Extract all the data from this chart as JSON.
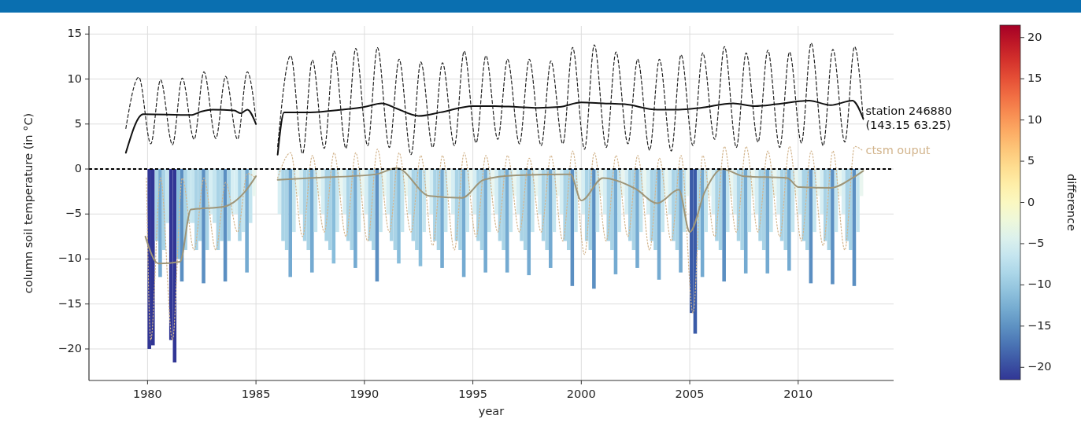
{
  "chart_data": {
    "type": "line",
    "xlabel": "year",
    "ylabel": "column soil temperature (in °C)",
    "clabel": "difference",
    "xlim": [
      1977.3,
      2014.4
    ],
    "ylim": [
      -23.5,
      15.9
    ],
    "xticks": [
      1980,
      1985,
      1990,
      1995,
      2000,
      2005,
      2010
    ],
    "yticks": [
      {
        "value": -20,
        "label": "−20"
      },
      {
        "value": -15,
        "label": "−15"
      },
      {
        "value": -10,
        "label": "−10"
      },
      {
        "value": -5,
        "label": "−5"
      },
      0,
      5,
      10,
      15
    ],
    "clim": [
      -21.5,
      21.5
    ],
    "cticks": [
      {
        "value": -20,
        "label": "−20"
      },
      {
        "value": -15,
        "label": "−15"
      },
      {
        "value": -10,
        "label": "−10"
      },
      {
        "value": -5,
        "label": "−5"
      },
      0,
      5,
      10,
      15,
      20
    ],
    "grid": true,
    "ref_lines": [
      {
        "axis": "y",
        "value": 0,
        "color": "#000000",
        "line_style": "dashed"
      }
    ],
    "series": [
      {
        "type": "bar",
        "x": [
          1980.083,
          1980.25,
          1980.417,
          1980.583,
          1980.75,
          1980.917,
          1981.083,
          1981.25,
          1981.417,
          1981.583,
          1981.75,
          1981.917,
          1982.083,
          1982.25,
          1982.417,
          1982.583,
          1982.75,
          1982.917,
          1983.083,
          1983.25,
          1983.417,
          1983.583,
          1983.75,
          1983.917,
          1984.083,
          1984.25,
          1984.417,
          1984.583,
          1984.75,
          1984.917,
          1986.083,
          1986.25,
          1986.417,
          1986.583,
          1986.75,
          1986.917,
          1987.083,
          1987.25,
          1987.417,
          1987.583,
          1987.75,
          1987.917,
          1988.083,
          1988.25,
          1988.417,
          1988.583,
          1988.75,
          1988.917,
          1989.083,
          1989.25,
          1989.417,
          1989.583,
          1989.75,
          1989.917,
          1990.083,
          1990.25,
          1990.417,
          1990.583,
          1990.75,
          1990.917,
          1991.083,
          1991.25,
          1991.417,
          1991.583,
          1991.75,
          1991.917,
          1992.083,
          1992.25,
          1992.417,
          1992.583,
          1992.75,
          1992.917,
          1993.083,
          1993.25,
          1993.417,
          1993.583,
          1993.75,
          1993.917,
          1994.083,
          1994.25,
          1994.417,
          1994.583,
          1994.75,
          1994.917,
          1995.083,
          1995.25,
          1995.417,
          1995.583,
          1995.75,
          1995.917,
          1996.083,
          1996.25,
          1996.417,
          1996.583,
          1996.75,
          1996.917,
          1997.083,
          1997.25,
          1997.417,
          1997.583,
          1997.75,
          1997.917,
          1998.083,
          1998.25,
          1998.417,
          1998.583,
          1998.75,
          1998.917,
          1999.083,
          1999.25,
          1999.417,
          1999.583,
          1999.75,
          1999.917,
          2000.083,
          2000.25,
          2000.417,
          2000.583,
          2000.75,
          2000.917,
          2001.083,
          2001.25,
          2001.417,
          2001.583,
          2001.75,
          2001.917,
          2002.083,
          2002.25,
          2002.417,
          2002.583,
          2002.75,
          2002.917,
          2003.083,
          2003.25,
          2003.417,
          2003.583,
          2003.75,
          2003.917,
          2004.083,
          2004.25,
          2004.417,
          2004.583,
          2004.75,
          2004.917,
          2005.083,
          2005.25,
          2005.417,
          2005.583,
          2005.75,
          2005.917,
          2006.083,
          2006.25,
          2006.417,
          2006.583,
          2006.75,
          2006.917,
          2007.083,
          2007.25,
          2007.417,
          2007.583,
          2007.75,
          2007.917,
          2008.083,
          2008.25,
          2008.417,
          2008.583,
          2008.75,
          2008.917,
          2009.083,
          2009.25,
          2009.417,
          2009.583,
          2009.75,
          2009.917,
          2010.083,
          2010.25,
          2010.417,
          2010.583,
          2010.75,
          2010.917,
          2011.083,
          2011.25,
          2011.417,
          2011.583,
          2011.75,
          2011.917,
          2012.083,
          2012.25,
          2012.417,
          2012.583,
          2012.75,
          2012.917
        ],
        "colors": [
          "#313695",
          "#313695",
          "#a9d3e6",
          "#74aad1",
          "#a9d3e6",
          "#c5e5ef",
          "#313695",
          "#313695",
          "#88bddb",
          "#5b8fc2",
          "#a9d3e6",
          "#c5e5ef",
          "#c5e5ef",
          "#a9d3e6",
          "#a9d3e6",
          "#5b8fc2",
          "#a9d3e6",
          "#d6eef3",
          "#c5e5ef",
          "#a9d3e6",
          "#a9d3e6",
          "#5b8fc2",
          "#a9d3e6",
          "#d6eef3",
          "#d6eef3",
          "#a9d3e6",
          "#c5e5ef",
          "#74aad1",
          "#c5e5ef",
          "#eaf6f0",
          "#d6eef3",
          "#a9d3e6",
          "#a9d3e6",
          "#74aad1",
          "#c5e5ef",
          "#eaf6f0",
          "#d6eef3",
          "#a9d3e6",
          "#a9d3e6",
          "#74aad1",
          "#c5e5ef",
          "#eaf6f0",
          "#d6eef3",
          "#a9d3e6",
          "#a9d3e6",
          "#88bddb",
          "#c5e5ef",
          "#eaf6f0",
          "#d6eef3",
          "#a9d3e6",
          "#a9d3e6",
          "#74aad1",
          "#c5e5ef",
          "#eaf6f0",
          "#d6eef3",
          "#a9d3e6",
          "#a9d3e6",
          "#5b8fc2",
          "#c5e5ef",
          "#eaf6f0",
          "#d6eef3",
          "#a9d3e6",
          "#a9d3e6",
          "#88bddb",
          "#c5e5ef",
          "#eaf6f0",
          "#d6eef3",
          "#a9d3e6",
          "#a9d3e6",
          "#88bddb",
          "#c5e5ef",
          "#eaf6f0",
          "#d6eef3",
          "#a9d3e6",
          "#a9d3e6",
          "#74aad1",
          "#c5e5ef",
          "#eaf6f0",
          "#d6eef3",
          "#a9d3e6",
          "#a9d3e6",
          "#74aad1",
          "#c5e5ef",
          "#eaf6f0",
          "#d6eef3",
          "#a9d3e6",
          "#a9d3e6",
          "#74aad1",
          "#c5e5ef",
          "#eaf6f0",
          "#d6eef3",
          "#a9d3e6",
          "#a9d3e6",
          "#74aad1",
          "#c5e5ef",
          "#eaf6f0",
          "#d6eef3",
          "#a9d3e6",
          "#a9d3e6",
          "#74aad1",
          "#c5e5ef",
          "#eaf6f0",
          "#d6eef3",
          "#a9d3e6",
          "#a9d3e6",
          "#74aad1",
          "#c5e5ef",
          "#eaf6f0",
          "#d6eef3",
          "#a9d3e6",
          "#a9d3e6",
          "#5b8fc2",
          "#c5e5ef",
          "#eaf6f0",
          "#d6eef3",
          "#a9d3e6",
          "#a9d3e6",
          "#5b8fc2",
          "#c5e5ef",
          "#eaf6f0",
          "#d6eef3",
          "#a9d3e6",
          "#a9d3e6",
          "#74aad1",
          "#c5e5ef",
          "#eaf6f0",
          "#d6eef3",
          "#a9d3e6",
          "#a9d3e6",
          "#74aad1",
          "#c5e5ef",
          "#eaf6f0",
          "#d6eef3",
          "#a9d3e6",
          "#a9d3e6",
          "#74aad1",
          "#c5e5ef",
          "#eaf6f0",
          "#d6eef3",
          "#a9d3e6",
          "#a9d3e6",
          "#74aad1",
          "#c5e5ef",
          "#eaf6f0",
          "#3a5ba8",
          "#3a5ba8",
          "#a9d3e6",
          "#74aad1",
          "#c5e5ef",
          "#eaf6f0",
          "#d6eef3",
          "#a9d3e6",
          "#a9d3e6",
          "#5b8fc2",
          "#c5e5ef",
          "#eaf6f0",
          "#d6eef3",
          "#a9d3e6",
          "#a9d3e6",
          "#74aad1",
          "#c5e5ef",
          "#eaf6f0",
          "#d6eef3",
          "#a9d3e6",
          "#a9d3e6",
          "#74aad1",
          "#c5e5ef",
          "#eaf6f0",
          "#d6eef3",
          "#a9d3e6",
          "#a9d3e6",
          "#74aad1",
          "#c5e5ef",
          "#eaf6f0",
          "#d6eef3",
          "#a9d3e6",
          "#a9d3e6",
          "#5b8fc2",
          "#c5e5ef",
          "#eaf6f0",
          "#d6eef3",
          "#a9d3e6",
          "#a9d3e6",
          "#5b8fc2",
          "#c5e5ef",
          "#eaf6f0",
          "#d6eef3",
          "#a9d3e6",
          "#a9d3e6",
          "#5b8fc2",
          "#c5e5ef",
          "#eaf6f0"
        ],
        "values": [
          -20,
          -19.6,
          -8,
          -12,
          -9,
          -6,
          -19,
          -21.5,
          -10,
          -12.5,
          -9,
          -6,
          -6,
          -9,
          -8,
          -12.7,
          -9,
          -5,
          -6,
          -9,
          -8,
          -12.5,
          -8,
          -5,
          -5,
          -8,
          -7,
          -11.5,
          -6,
          -3,
          -5,
          -8,
          -9,
          -12,
          -7,
          -3,
          -5,
          -8,
          -9,
          -11.5,
          -7,
          -3,
          -5,
          -8,
          -9,
          -10.5,
          -7,
          -3,
          -5,
          -8,
          -9,
          -11,
          -7,
          -3,
          -5,
          -8,
          -9,
          -12.5,
          -7,
          -3,
          -5,
          -8,
          -9,
          -10.5,
          -7,
          -3,
          -5,
          -8,
          -9,
          -10.8,
          -7,
          -3,
          -5,
          -8,
          -9,
          -11,
          -7,
          -3,
          -5,
          -8,
          -9,
          -12,
          -7,
          -3,
          -5,
          -8,
          -9,
          -11.5,
          -7,
          -3,
          -5,
          -8,
          -9,
          -11.5,
          -7,
          -3,
          -5,
          -8,
          -9,
          -11.8,
          -7,
          -3,
          -5,
          -8,
          -9,
          -11,
          -7,
          -3,
          -5,
          -8,
          -9,
          -13,
          -7,
          -3,
          -5,
          -8,
          -9,
          -13.3,
          -7,
          -3,
          -5,
          -8,
          -9,
          -11.7,
          -7,
          -3,
          -5,
          -8,
          -9,
          -11,
          -7,
          -3,
          -5,
          -8,
          -9,
          -12.3,
          -7,
          -3,
          -5,
          -8,
          -9,
          -11.5,
          -7,
          -3,
          -16,
          -18.3,
          -9,
          -12,
          -7,
          -3,
          -5,
          -8,
          -9,
          -12.5,
          -7,
          -3,
          -5,
          -8,
          -9,
          -11.6,
          -7,
          -3,
          -5,
          -8,
          -9,
          -11.6,
          -7,
          -3,
          -5,
          -8,
          -9,
          -11.3,
          -7,
          -3,
          -5,
          -8,
          -9,
          -12.7,
          -7,
          -3,
          -5,
          -8,
          -9,
          -12.8,
          -7,
          -3,
          -5,
          -8,
          -9,
          -13,
          -7,
          -3
        ]
      },
      {
        "color": "#222222",
        "line_style": "dashed",
        "x": [
          1979.0,
          1979.6,
          1980.15,
          1980.6,
          1981.15,
          1981.6,
          1982.15,
          1982.6,
          1983.15,
          1983.6,
          1984.15,
          1984.6,
          1985.0,
          1985.5,
          1986.0,
          1986.6,
          1987.15,
          1987.6,
          1988.15,
          1988.6,
          1989.15,
          1989.6,
          1990.15,
          1990.6,
          1991.15,
          1991.6,
          1992.15,
          1992.6,
          1993.15,
          1993.6,
          1994.15,
          1994.6,
          1995.15,
          1995.6,
          1996.15,
          1996.6,
          1997.15,
          1997.6,
          1998.15,
          1998.6,
          1999.15,
          1999.6,
          2000.15,
          2000.6,
          2001.15,
          2001.6,
          2002.15,
          2002.6,
          2003.15,
          2003.6,
          2004.15,
          2004.6,
          2005.15,
          2005.6,
          2006.15,
          2006.6,
          2007.15,
          2007.6,
          2008.15,
          2008.6,
          2009.15,
          2009.6,
          2010.15,
          2010.6,
          2011.15,
          2011.6,
          2012.15,
          2012.6,
          2013.0
        ],
        "values": [
          4.5,
          10.2,
          2.8,
          9.9,
          2.7,
          10.1,
          3.3,
          10.8,
          3.4,
          10.3,
          3.3,
          10.8,
          5.5,
          null,
          2.5,
          12.6,
          1.7,
          12.1,
          2.3,
          13.1,
          2.3,
          13.4,
          2.6,
          13.5,
          2.4,
          12.2,
          1.6,
          11.9,
          2.4,
          11.8,
          2.6,
          13.1,
          2.9,
          12.6,
          3.3,
          12.2,
          2.8,
          12.2,
          2.6,
          12.0,
          2.8,
          13.5,
          2.2,
          13.8,
          2.4,
          13.0,
          2.8,
          12.2,
          2.1,
          12.2,
          2.0,
          12.7,
          2.6,
          12.9,
          3.3,
          13.6,
          2.4,
          12.9,
          3.0,
          13.2,
          2.4,
          13.0,
          2.9,
          14.0,
          2.6,
          13.3,
          3.0,
          13.6,
          5.5
        ]
      },
      {
        "name": "station 246880 (143.15 63.25)",
        "color": "#111111",
        "line_style": "solid",
        "x": [
          1979.0,
          1979.8,
          1982.0,
          1982.5,
          1983.0,
          1984.0,
          1984.3,
          1984.6,
          1985.0,
          1985.5,
          1986.0,
          1986.3,
          1987.5,
          1989.0,
          1990.0,
          1990.8,
          1991.5,
          1992.5,
          1993.5,
          1995.0,
          1996.0,
          1997.0,
          1998.0,
          1999.0,
          2000.0,
          2001.0,
          2002.0,
          2003.5,
          2004.5,
          2005.5,
          2007.0,
          2008.0,
          2009.0,
          2010.5,
          2011.5,
          2012.5,
          2013.0
        ],
        "values": [
          1.8,
          6.1,
          6.0,
          6.4,
          6.6,
          6.5,
          6.2,
          6.6,
          5.0,
          null,
          1.6,
          6.3,
          6.3,
          6.6,
          6.9,
          7.3,
          6.7,
          5.9,
          6.3,
          7.0,
          7.0,
          6.9,
          6.8,
          6.9,
          7.4,
          7.3,
          7.2,
          6.6,
          6.6,
          6.8,
          7.3,
          7.0,
          7.2,
          7.6,
          7.1,
          7.6,
          5.6
        ]
      },
      {
        "name": "ctsm ouput",
        "color": "#d2b48c",
        "line_style": "dotted",
        "x": [
          1979.95,
          1980.15,
          1980.6,
          1981.15,
          1981.6,
          1982.15,
          1982.6,
          1983.15,
          1983.6,
          1984.15,
          1984.6,
          1985.0,
          1985.5,
          1986.0,
          1986.6,
          1987.15,
          1987.6,
          1988.15,
          1988.6,
          1989.15,
          1989.6,
          1990.15,
          1990.6,
          1991.15,
          1991.6,
          1992.15,
          1992.6,
          1993.15,
          1993.6,
          1994.15,
          1994.6,
          1995.15,
          1995.6,
          1996.15,
          1996.6,
          1997.15,
          1997.6,
          1998.15,
          1998.6,
          1999.15,
          1999.6,
          2000.15,
          2000.6,
          2001.15,
          2001.6,
          2002.15,
          2002.6,
          2003.15,
          2003.6,
          2004.15,
          2004.6,
          2005.15,
          2005.6,
          2006.15,
          2006.6,
          2007.15,
          2007.6,
          2008.15,
          2008.6,
          2009.15,
          2009.6,
          2010.15,
          2010.6,
          2011.15,
          2011.6,
          2012.15,
          2012.6,
          2013.0
        ],
        "values": [
          -1,
          -19,
          -1,
          -19,
          -1,
          -9,
          -1,
          -9,
          -1.5,
          -7,
          -0.5,
          -1,
          null,
          -1,
          1.8,
          -7.5,
          1.5,
          -7,
          1.8,
          -7.5,
          1.8,
          -8,
          2.2,
          -7,
          1.8,
          -7,
          1.5,
          -8.5,
          1.5,
          -9,
          1.8,
          -7.5,
          1.5,
          -7,
          1.5,
          -7,
          1.2,
          -7,
          1.5,
          -8,
          2.0,
          -9.5,
          1.8,
          -8,
          1.5,
          -7.5,
          1.5,
          -9,
          1.2,
          -8,
          1.5,
          -16,
          1.5,
          -7.5,
          2.5,
          -7,
          2.5,
          -7,
          2.0,
          -7.5,
          2.5,
          -8,
          2.0,
          -8.5,
          2.0,
          -9,
          2.5,
          2.0
        ]
      },
      {
        "color": "#9e9578",
        "line_style": "solid",
        "x": [
          1979.9,
          1980.5,
          1981.5,
          1982.0,
          1983.5,
          1984.5,
          1985.0,
          1985.5,
          1986.0,
          1987.5,
          1990.5,
          1991.5,
          1993.0,
          1994.5,
          1995.5,
          1997.0,
          1999.5,
          2000.0,
          2001.0,
          2002.5,
          2003.5,
          2004.5,
          2005.0,
          2005.7,
          2006.5,
          2007.5,
          2009.5,
          2010.0,
          2011.5,
          2012.5,
          2013.0
        ],
        "values": [
          -7.5,
          -10.5,
          -10.3,
          -4.5,
          -4.2,
          -2.5,
          -0.8,
          null,
          -1.2,
          -1.0,
          -0.6,
          0.1,
          -3.0,
          -3.2,
          -1.2,
          -0.7,
          -0.6,
          -3.5,
          -1.0,
          -2.2,
          -3.8,
          -2.3,
          -7.0,
          -2.5,
          0.0,
          -0.8,
          -1.0,
          -2.0,
          -2.1,
          -1.0,
          -0.2
        ]
      }
    ]
  }
}
